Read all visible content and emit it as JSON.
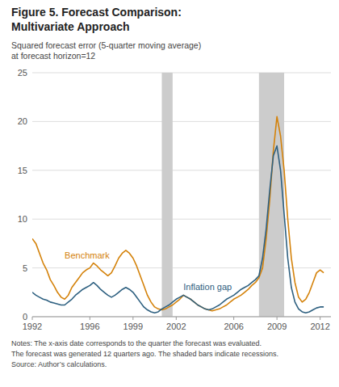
{
  "chart_data": {
    "type": "line",
    "title": "Figure 5. Forecast Comparison:",
    "subtitle": "Multivariate Approach",
    "y_label": [
      "Squared forecast error (5-quarter moving average)",
      "at forecast horizon=12"
    ],
    "notes": [
      "Notes: The x-axis date corresponds to the quarter the forecast was evaluated.",
      "The forecast was generated 12 quarters ago. The shaded bars indicate recessions.",
      "Source: Author’s calculations."
    ],
    "xlim": [
      1992.0,
      2012.75
    ],
    "xticks": [
      1992,
      1996,
      1999,
      2002,
      2006,
      2009,
      2012
    ],
    "ylim": [
      0,
      25
    ],
    "yticks": [
      0,
      5,
      10,
      15,
      20,
      25
    ],
    "grid": true,
    "recession_bands": [
      {
        "start": 2001.0,
        "end": 2001.75,
        "color": "#cccccc"
      },
      {
        "start": 2007.75,
        "end": 2009.5,
        "color": "#cccccc"
      }
    ],
    "x": [
      1992.0,
      1992.25,
      1992.5,
      1992.75,
      1993.0,
      1993.25,
      1993.5,
      1993.75,
      1994.0,
      1994.25,
      1994.5,
      1994.75,
      1995.0,
      1995.25,
      1995.5,
      1995.75,
      1996.0,
      1996.25,
      1996.5,
      1996.75,
      1997.0,
      1997.25,
      1997.5,
      1997.75,
      1998.0,
      1998.25,
      1998.5,
      1998.75,
      1999.0,
      1999.25,
      1999.5,
      1999.75,
      2000.0,
      2000.25,
      2000.5,
      2000.75,
      2001.0,
      2001.25,
      2001.5,
      2001.75,
      2002.0,
      2002.25,
      2002.5,
      2002.75,
      2003.0,
      2003.25,
      2003.5,
      2003.75,
      2004.0,
      2004.25,
      2004.5,
      2004.75,
      2005.0,
      2005.25,
      2005.5,
      2005.75,
      2006.0,
      2006.25,
      2006.5,
      2006.75,
      2007.0,
      2007.25,
      2007.5,
      2007.75,
      2008.0,
      2008.25,
      2008.5,
      2008.75,
      2009.0,
      2009.25,
      2009.5,
      2009.75,
      2010.0,
      2010.25,
      2010.5,
      2010.75,
      2011.0,
      2011.25,
      2011.5,
      2011.75,
      2012.0,
      2012.25
    ],
    "series": [
      {
        "name": "Benchmark",
        "color": "#d4820a",
        "values": [
          8.0,
          7.5,
          6.5,
          5.5,
          4.8,
          3.8,
          3.2,
          2.5,
          2.0,
          1.8,
          2.2,
          3.0,
          3.5,
          4.0,
          4.5,
          4.8,
          5.0,
          5.5,
          5.2,
          4.8,
          4.5,
          4.2,
          4.5,
          5.2,
          6.0,
          6.5,
          6.8,
          6.5,
          6.0,
          5.2,
          4.2,
          3.2,
          2.2,
          1.5,
          1.0,
          0.8,
          0.7,
          0.8,
          1.0,
          1.2,
          1.5,
          1.8,
          2.2,
          2.0,
          1.8,
          1.5,
          1.2,
          1.0,
          0.8,
          0.7,
          0.6,
          0.7,
          0.8,
          1.0,
          1.2,
          1.5,
          1.8,
          2.0,
          2.2,
          2.5,
          2.8,
          3.2,
          3.5,
          4.0,
          5.0,
          8.0,
          12.0,
          17.0,
          20.5,
          18.5,
          15.0,
          10.0,
          6.0,
          3.5,
          2.0,
          1.5,
          1.8,
          2.5,
          3.5,
          4.5,
          4.8,
          4.5
        ]
      },
      {
        "name": "Inflation gap",
        "color": "#2e6080",
        "values": [
          2.5,
          2.2,
          2.0,
          1.8,
          1.7,
          1.5,
          1.4,
          1.3,
          1.2,
          1.2,
          1.5,
          1.8,
          2.2,
          2.5,
          2.8,
          3.0,
          3.2,
          3.5,
          3.2,
          2.8,
          2.5,
          2.2,
          2.0,
          2.2,
          2.5,
          2.8,
          3.0,
          2.8,
          2.5,
          2.0,
          1.5,
          1.0,
          0.7,
          0.5,
          0.4,
          0.5,
          0.8,
          1.0,
          1.2,
          1.5,
          1.8,
          2.0,
          2.2,
          2.0,
          1.8,
          1.5,
          1.2,
          1.0,
          0.8,
          0.7,
          0.8,
          1.0,
          1.2,
          1.5,
          1.8,
          2.0,
          2.2,
          2.5,
          2.8,
          3.0,
          3.2,
          3.5,
          3.8,
          4.2,
          6.0,
          9.0,
          13.0,
          16.5,
          17.5,
          15.0,
          10.5,
          6.0,
          3.0,
          1.5,
          0.8,
          0.5,
          0.4,
          0.5,
          0.7,
          0.9,
          1.0,
          1.0
        ]
      }
    ]
  }
}
